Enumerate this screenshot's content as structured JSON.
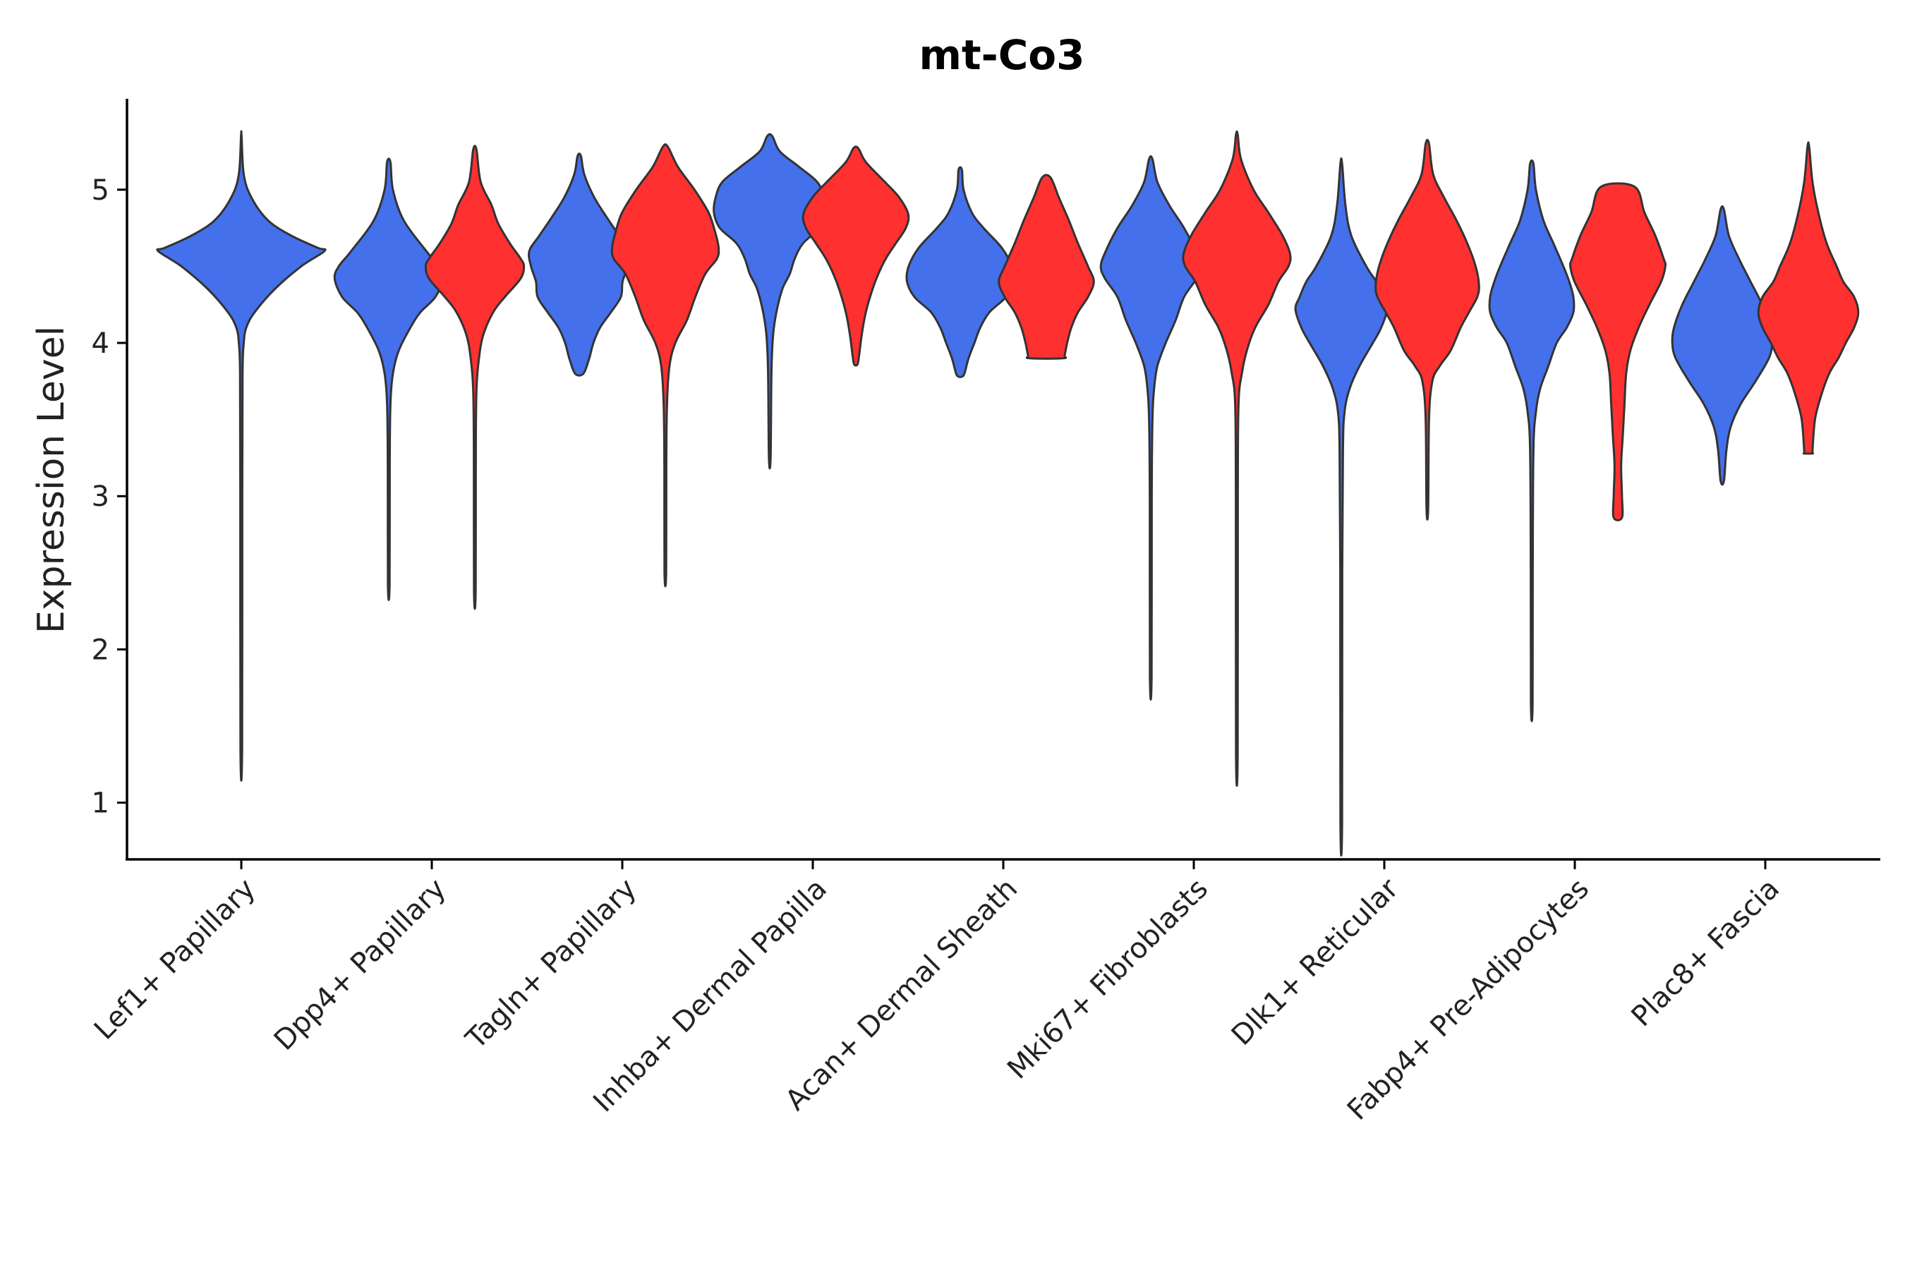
{
  "chart_data": {
    "type": "violin",
    "title": "mt-Co3",
    "xlabel": "",
    "ylabel": "Expression Level",
    "ylim": [
      0.63,
      5.6
    ],
    "yticks": [
      1,
      2,
      3,
      4,
      5
    ],
    "categories": [
      "Lef1+ Papillary",
      "Dpp4+ Papillary",
      "Tagln+ Papillary",
      "Inhba+ Dermal Papilla",
      "Acan+ Dermal Sheath",
      "Mki67+ Fibroblasts",
      "Dlk1+ Reticular",
      "Fabp4+ Pre-Adipocytes",
      "Plac8+ Fascia"
    ],
    "series_colors": {
      "blue": "#4470EC",
      "red": "#FF3030"
    },
    "outline_color": "#333333",
    "violins": [
      {
        "category": "Lef1+ Papillary",
        "color": "blue",
        "offset": 0,
        "min": 1.35,
        "max": 5.35,
        "profile": [
          [
            5.35,
            0.003
          ],
          [
            5.1,
            0.03
          ],
          [
            4.95,
            0.12
          ],
          [
            4.8,
            0.32
          ],
          [
            4.7,
            0.6
          ],
          [
            4.62,
            0.92
          ],
          [
            4.6,
            1.0
          ],
          [
            4.5,
            0.72
          ],
          [
            4.35,
            0.4
          ],
          [
            4.2,
            0.16
          ],
          [
            4.1,
            0.06
          ],
          [
            4.0,
            0.03
          ],
          [
            3.8,
            0.015
          ],
          [
            3.0,
            0.012
          ],
          [
            1.35,
            0.01
          ]
        ]
      },
      {
        "category": "Dpp4+ Papillary",
        "color": "blue",
        "offset": -1,
        "min": 2.42,
        "max": 5.18,
        "profile": [
          [
            5.18,
            0.02
          ],
          [
            5.0,
            0.05
          ],
          [
            4.8,
            0.18
          ],
          [
            4.6,
            0.45
          ],
          [
            4.5,
            0.6
          ],
          [
            4.42,
            0.65
          ],
          [
            4.3,
            0.56
          ],
          [
            4.2,
            0.38
          ],
          [
            4.1,
            0.26
          ],
          [
            3.95,
            0.12
          ],
          [
            3.8,
            0.05
          ],
          [
            3.6,
            0.02
          ],
          [
            3.2,
            0.012
          ],
          [
            2.42,
            0.01
          ]
        ]
      },
      {
        "category": "Dpp4+ Papillary",
        "color": "red",
        "offset": 1,
        "min": 2.38,
        "max": 5.26,
        "profile": [
          [
            5.26,
            0.02
          ],
          [
            5.05,
            0.07
          ],
          [
            4.9,
            0.2
          ],
          [
            4.78,
            0.28
          ],
          [
            4.65,
            0.42
          ],
          [
            4.55,
            0.55
          ],
          [
            4.5,
            0.59
          ],
          [
            4.42,
            0.55
          ],
          [
            4.3,
            0.36
          ],
          [
            4.2,
            0.22
          ],
          [
            4.05,
            0.1
          ],
          [
            3.9,
            0.05
          ],
          [
            3.7,
            0.02
          ],
          [
            3.3,
            0.012
          ],
          [
            2.38,
            0.01
          ]
        ]
      },
      {
        "category": "Tagln+ Papillary",
        "color": "blue",
        "offset": -1,
        "min": 3.8,
        "max": 5.22,
        "profile": [
          [
            5.22,
            0.02
          ],
          [
            5.1,
            0.06
          ],
          [
            4.95,
            0.18
          ],
          [
            4.82,
            0.33
          ],
          [
            4.7,
            0.48
          ],
          [
            4.6,
            0.6
          ],
          [
            4.5,
            0.58
          ],
          [
            4.4,
            0.52
          ],
          [
            4.3,
            0.5
          ],
          [
            4.2,
            0.38
          ],
          [
            4.1,
            0.25
          ],
          [
            4.0,
            0.17
          ],
          [
            3.9,
            0.12
          ],
          [
            3.8,
            0.05
          ]
        ]
      },
      {
        "category": "Tagln+ Papillary",
        "color": "red",
        "offset": 1,
        "min": 2.5,
        "max": 5.28,
        "profile": [
          [
            5.28,
            0.03
          ],
          [
            5.15,
            0.15
          ],
          [
            5.0,
            0.35
          ],
          [
            4.85,
            0.52
          ],
          [
            4.72,
            0.6
          ],
          [
            4.62,
            0.64
          ],
          [
            4.55,
            0.62
          ],
          [
            4.45,
            0.48
          ],
          [
            4.3,
            0.36
          ],
          [
            4.15,
            0.26
          ],
          [
            4.0,
            0.12
          ],
          [
            3.85,
            0.05
          ],
          [
            3.6,
            0.02
          ],
          [
            3.2,
            0.012
          ],
          [
            2.5,
            0.01
          ]
        ]
      },
      {
        "category": "Inhba+ Dermal Papilla",
        "color": "blue",
        "offset": -1,
        "min": 3.25,
        "max": 5.35,
        "profile": [
          [
            5.35,
            0.03
          ],
          [
            5.25,
            0.12
          ],
          [
            5.15,
            0.35
          ],
          [
            5.05,
            0.57
          ],
          [
            4.95,
            0.65
          ],
          [
            4.85,
            0.67
          ],
          [
            4.75,
            0.6
          ],
          [
            4.65,
            0.4
          ],
          [
            4.55,
            0.3
          ],
          [
            4.45,
            0.24
          ],
          [
            4.35,
            0.15
          ],
          [
            4.2,
            0.08
          ],
          [
            4.05,
            0.04
          ],
          [
            3.8,
            0.02
          ],
          [
            3.25,
            0.01
          ]
        ]
      },
      {
        "category": "Inhba+ Dermal Papilla",
        "color": "red",
        "offset": 1,
        "min": 3.86,
        "max": 5.27,
        "profile": [
          [
            5.27,
            0.03
          ],
          [
            5.18,
            0.12
          ],
          [
            5.05,
            0.35
          ],
          [
            4.95,
            0.52
          ],
          [
            4.84,
            0.63
          ],
          [
            4.75,
            0.6
          ],
          [
            4.65,
            0.48
          ],
          [
            4.55,
            0.36
          ],
          [
            4.45,
            0.27
          ],
          [
            4.35,
            0.2
          ],
          [
            4.2,
            0.12
          ],
          [
            4.05,
            0.07
          ],
          [
            3.92,
            0.04
          ],
          [
            3.86,
            0.02
          ]
        ]
      },
      {
        "category": "Acan+ Dermal Sheath",
        "color": "blue",
        "offset": -1,
        "min": 3.78,
        "max": 5.13,
        "profile": [
          [
            5.13,
            0.02
          ],
          [
            5.0,
            0.04
          ],
          [
            4.85,
            0.14
          ],
          [
            4.75,
            0.28
          ],
          [
            4.62,
            0.5
          ],
          [
            4.5,
            0.62
          ],
          [
            4.4,
            0.64
          ],
          [
            4.3,
            0.55
          ],
          [
            4.2,
            0.35
          ],
          [
            4.1,
            0.24
          ],
          [
            4.0,
            0.17
          ],
          [
            3.9,
            0.1
          ],
          [
            3.8,
            0.05
          ],
          [
            3.78,
            0.02
          ]
        ]
      },
      {
        "category": "Acan+ Dermal Sheath",
        "color": "red",
        "offset": 1,
        "min": 3.9,
        "max": 5.08,
        "profile": [
          [
            5.08,
            0.05
          ],
          [
            4.95,
            0.15
          ],
          [
            4.8,
            0.27
          ],
          [
            4.65,
            0.38
          ],
          [
            4.5,
            0.5
          ],
          [
            4.4,
            0.57
          ],
          [
            4.3,
            0.5
          ],
          [
            4.2,
            0.38
          ],
          [
            4.1,
            0.3
          ],
          [
            4.0,
            0.25
          ],
          [
            3.92,
            0.22
          ],
          [
            3.9,
            0.2
          ]
        ]
      },
      {
        "category": "Mki67+ Fibroblasts",
        "color": "blue",
        "offset": -1,
        "min": 1.82,
        "max": 5.2,
        "profile": [
          [
            5.2,
            0.02
          ],
          [
            5.05,
            0.08
          ],
          [
            4.9,
            0.22
          ],
          [
            4.75,
            0.4
          ],
          [
            4.6,
            0.54
          ],
          [
            4.5,
            0.6
          ],
          [
            4.42,
            0.55
          ],
          [
            4.3,
            0.4
          ],
          [
            4.15,
            0.3
          ],
          [
            4.0,
            0.18
          ],
          [
            3.85,
            0.08
          ],
          [
            3.7,
            0.04
          ],
          [
            3.5,
            0.02
          ],
          [
            3.0,
            0.012
          ],
          [
            1.82,
            0.01
          ]
        ]
      },
      {
        "category": "Mki67+ Fibroblasts",
        "color": "red",
        "offset": 1,
        "min": 1.32,
        "max": 5.36,
        "profile": [
          [
            5.36,
            0.01
          ],
          [
            5.2,
            0.05
          ],
          [
            5.0,
            0.2
          ],
          [
            4.85,
            0.38
          ],
          [
            4.7,
            0.55
          ],
          [
            4.58,
            0.64
          ],
          [
            4.5,
            0.62
          ],
          [
            4.4,
            0.5
          ],
          [
            4.25,
            0.38
          ],
          [
            4.1,
            0.22
          ],
          [
            3.95,
            0.12
          ],
          [
            3.8,
            0.06
          ],
          [
            3.6,
            0.02
          ],
          [
            3.0,
            0.012
          ],
          [
            1.32,
            0.01
          ]
        ]
      },
      {
        "category": "Dlk1+ Reticular",
        "color": "blue",
        "offset": -1,
        "min": 0.86,
        "max": 5.17,
        "profile": [
          [
            5.17,
            0.01
          ],
          [
            4.9,
            0.05
          ],
          [
            4.7,
            0.12
          ],
          [
            4.5,
            0.3
          ],
          [
            4.4,
            0.42
          ],
          [
            4.3,
            0.5
          ],
          [
            4.22,
            0.55
          ],
          [
            4.1,
            0.48
          ],
          [
            4.0,
            0.38
          ],
          [
            3.85,
            0.22
          ],
          [
            3.7,
            0.1
          ],
          [
            3.55,
            0.04
          ],
          [
            3.3,
            0.02
          ],
          [
            2.5,
            0.012
          ],
          [
            0.86,
            0.01
          ]
        ]
      },
      {
        "category": "Dlk1+ Reticular",
        "color": "red",
        "offset": 1,
        "min": 2.92,
        "max": 5.3,
        "profile": [
          [
            5.3,
            0.02
          ],
          [
            5.1,
            0.07
          ],
          [
            4.95,
            0.2
          ],
          [
            4.8,
            0.35
          ],
          [
            4.65,
            0.48
          ],
          [
            4.5,
            0.58
          ],
          [
            4.38,
            0.62
          ],
          [
            4.3,
            0.6
          ],
          [
            4.2,
            0.5
          ],
          [
            4.1,
            0.4
          ],
          [
            3.95,
            0.28
          ],
          [
            3.85,
            0.15
          ],
          [
            3.75,
            0.06
          ],
          [
            3.5,
            0.02
          ],
          [
            2.92,
            0.01
          ]
        ]
      },
      {
        "category": "Fabp4+ Pre-Adipocytes",
        "color": "blue",
        "offset": -1,
        "min": 1.64,
        "max": 5.17,
        "profile": [
          [
            5.17,
            0.02
          ],
          [
            5.0,
            0.05
          ],
          [
            4.8,
            0.14
          ],
          [
            4.65,
            0.26
          ],
          [
            4.5,
            0.38
          ],
          [
            4.4,
            0.45
          ],
          [
            4.3,
            0.5
          ],
          [
            4.2,
            0.5
          ],
          [
            4.1,
            0.42
          ],
          [
            4.0,
            0.3
          ],
          [
            3.85,
            0.2
          ],
          [
            3.7,
            0.1
          ],
          [
            3.55,
            0.05
          ],
          [
            3.3,
            0.02
          ],
          [
            2.5,
            0.012
          ],
          [
            1.64,
            0.01
          ]
        ]
      },
      {
        "category": "Fabp4+ Pre-Adipocytes",
        "color": "red",
        "offset": 1,
        "min": 2.86,
        "max": 5.02,
        "profile": [
          [
            5.02,
            0.2
          ],
          [
            4.85,
            0.32
          ],
          [
            4.7,
            0.45
          ],
          [
            4.55,
            0.55
          ],
          [
            4.5,
            0.57
          ],
          [
            4.4,
            0.52
          ],
          [
            4.25,
            0.38
          ],
          [
            4.1,
            0.25
          ],
          [
            3.95,
            0.15
          ],
          [
            3.8,
            0.1
          ],
          [
            3.6,
            0.08
          ],
          [
            3.4,
            0.06
          ],
          [
            3.2,
            0.04
          ],
          [
            3.0,
            0.05
          ],
          [
            2.86,
            0.05
          ]
        ]
      },
      {
        "category": "Plac8+ Fascia",
        "color": "blue",
        "offset": -1,
        "min": 3.1,
        "max": 4.87,
        "profile": [
          [
            4.87,
            0.02
          ],
          [
            4.7,
            0.08
          ],
          [
            4.55,
            0.2
          ],
          [
            4.4,
            0.34
          ],
          [
            4.25,
            0.48
          ],
          [
            4.1,
            0.58
          ],
          [
            4.0,
            0.6
          ],
          [
            3.9,
            0.56
          ],
          [
            3.75,
            0.4
          ],
          [
            3.6,
            0.22
          ],
          [
            3.45,
            0.1
          ],
          [
            3.3,
            0.05
          ],
          [
            3.1,
            0.02
          ]
        ]
      },
      {
        "category": "Plac8+ Fascia",
        "color": "red",
        "offset": 1,
        "min": 3.28,
        "max": 5.28,
        "profile": [
          [
            5.28,
            0.01
          ],
          [
            5.05,
            0.05
          ],
          [
            4.85,
            0.12
          ],
          [
            4.65,
            0.22
          ],
          [
            4.5,
            0.34
          ],
          [
            4.4,
            0.42
          ],
          [
            4.3,
            0.55
          ],
          [
            4.2,
            0.6
          ],
          [
            4.1,
            0.55
          ],
          [
            4.0,
            0.45
          ],
          [
            3.9,
            0.36
          ],
          [
            3.8,
            0.25
          ],
          [
            3.65,
            0.15
          ],
          [
            3.5,
            0.08
          ],
          [
            3.3,
            0.05
          ],
          [
            3.28,
            0.05
          ]
        ]
      }
    ]
  }
}
